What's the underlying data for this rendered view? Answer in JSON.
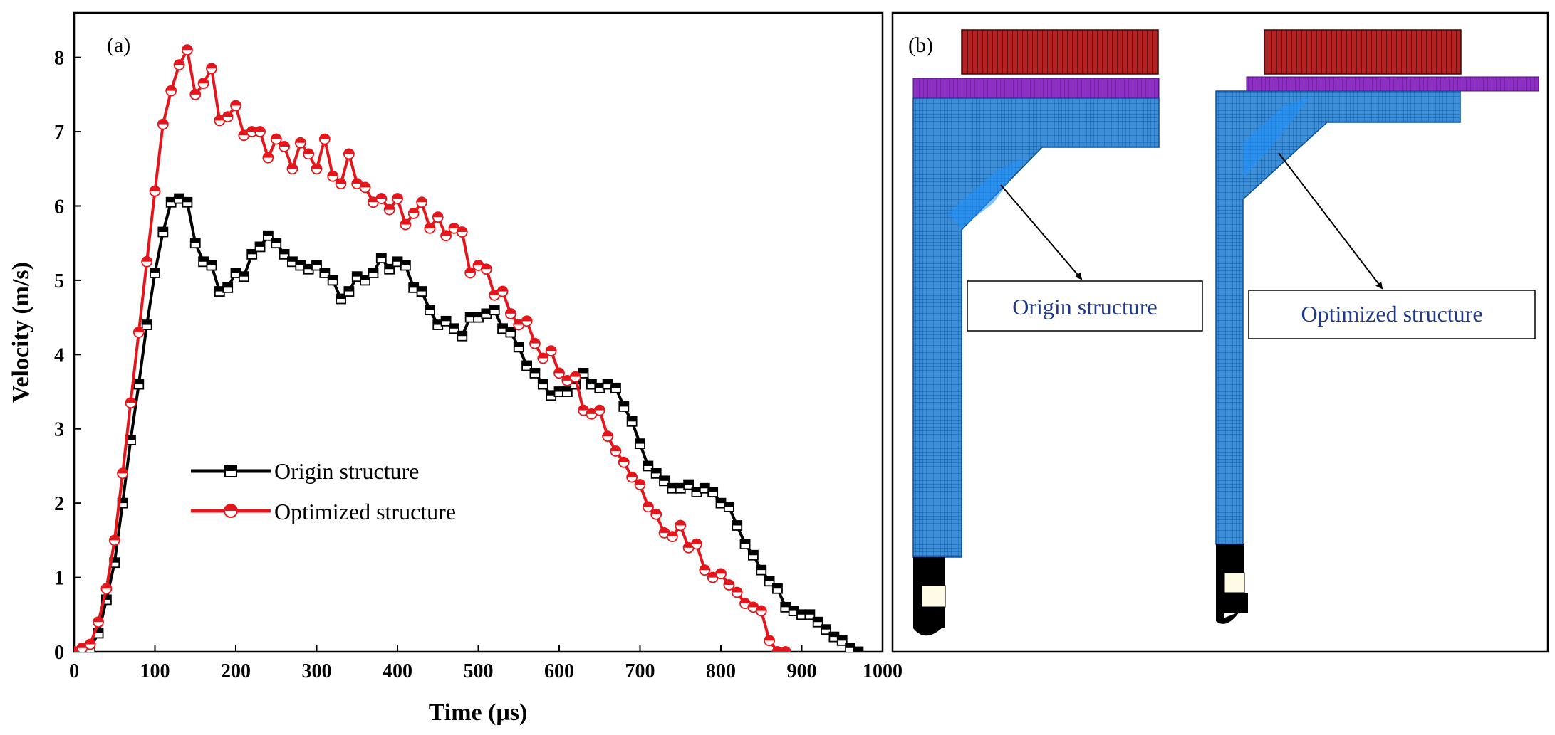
{
  "panel_a_label": "(a)",
  "panel_b_label": "(b)",
  "panel_b": {
    "callout_left": "Origin structure",
    "callout_right": "Optimized structure"
  },
  "colors": {
    "origin": "#000000",
    "optimized": "#e4161b",
    "mesh_fill": "#1e90ff",
    "mesh_line": "#0b4f9c",
    "bar_fill": "#b22222",
    "plate_fill": "#8e2ec6",
    "callout_text": "#1f3a8a"
  },
  "chart_data": {
    "type": "line",
    "title": "",
    "xlabel": "Time (μs)",
    "ylabel": "Velocity (m/s)",
    "xlim": [
      0,
      1000
    ],
    "ylim": [
      0,
      8.6
    ],
    "xticks": [
      0,
      100,
      200,
      300,
      400,
      500,
      600,
      700,
      800,
      900,
      1000
    ],
    "yticks": [
      0,
      1,
      2,
      3,
      4,
      5,
      6,
      7,
      8
    ],
    "legend_position": "lower-left",
    "series": [
      {
        "name": "Origin structure",
        "marker": "half-filled-square",
        "x": [
          0,
          10,
          20,
          30,
          40,
          50,
          60,
          70,
          80,
          90,
          100,
          110,
          120,
          130,
          140,
          150,
          160,
          170,
          180,
          190,
          200,
          210,
          220,
          230,
          240,
          250,
          260,
          270,
          280,
          290,
          300,
          310,
          320,
          330,
          340,
          350,
          360,
          370,
          380,
          390,
          400,
          410,
          420,
          430,
          440,
          450,
          460,
          470,
          480,
          490,
          500,
          510,
          520,
          530,
          540,
          550,
          560,
          570,
          580,
          590,
          600,
          610,
          620,
          630,
          640,
          650,
          660,
          670,
          680,
          690,
          700,
          710,
          720,
          730,
          740,
          750,
          760,
          770,
          780,
          790,
          800,
          810,
          820,
          830,
          840,
          850,
          860,
          870,
          880,
          890,
          900,
          910,
          920,
          930,
          940,
          950,
          960,
          970
        ],
        "y": [
          0,
          0,
          0.05,
          0.25,
          0.7,
          1.2,
          2.0,
          2.85,
          3.6,
          4.4,
          5.1,
          5.65,
          6.05,
          6.1,
          6.05,
          5.5,
          5.25,
          5.2,
          4.85,
          4.9,
          5.1,
          5.05,
          5.35,
          5.45,
          5.6,
          5.5,
          5.35,
          5.25,
          5.2,
          5.15,
          5.2,
          5.1,
          5.0,
          4.75,
          4.85,
          5.05,
          5.0,
          5.1,
          5.3,
          5.15,
          5.25,
          5.2,
          4.9,
          4.85,
          4.6,
          4.4,
          4.45,
          4.35,
          4.25,
          4.5,
          4.5,
          4.55,
          4.6,
          4.35,
          4.3,
          4.1,
          3.85,
          3.75,
          3.6,
          3.45,
          3.5,
          3.5,
          3.6,
          3.75,
          3.6,
          3.55,
          3.6,
          3.55,
          3.3,
          3.1,
          2.8,
          2.5,
          2.4,
          2.3,
          2.2,
          2.2,
          2.25,
          2.15,
          2.2,
          2.15,
          2.0,
          1.95,
          1.7,
          1.45,
          1.3,
          1.1,
          0.95,
          0.85,
          0.6,
          0.55,
          0.5,
          0.5,
          0.4,
          0.3,
          0.2,
          0.15,
          0.05,
          0
        ]
      },
      {
        "name": "Optimized structure",
        "marker": "half-filled-circle",
        "x": [
          0,
          10,
          20,
          30,
          40,
          50,
          60,
          70,
          80,
          90,
          100,
          110,
          120,
          130,
          140,
          150,
          160,
          170,
          180,
          190,
          200,
          210,
          220,
          230,
          240,
          250,
          260,
          270,
          280,
          290,
          300,
          310,
          320,
          330,
          340,
          350,
          360,
          370,
          380,
          390,
          400,
          410,
          420,
          430,
          440,
          450,
          460,
          470,
          480,
          490,
          500,
          510,
          520,
          530,
          540,
          550,
          560,
          570,
          580,
          590,
          600,
          610,
          620,
          630,
          640,
          650,
          660,
          670,
          680,
          690,
          700,
          710,
          720,
          730,
          740,
          750,
          760,
          770,
          780,
          790,
          800,
          810,
          820,
          830,
          840,
          850,
          860,
          870,
          880
        ],
        "y": [
          0,
          0.05,
          0.1,
          0.4,
          0.85,
          1.5,
          2.4,
          3.35,
          4.3,
          5.25,
          6.2,
          7.1,
          7.55,
          7.9,
          8.1,
          7.5,
          7.65,
          7.85,
          7.15,
          7.2,
          7.35,
          6.95,
          7.0,
          7.0,
          6.65,
          6.9,
          6.8,
          6.5,
          6.85,
          6.7,
          6.5,
          6.9,
          6.4,
          6.3,
          6.7,
          6.3,
          6.25,
          6.05,
          6.1,
          5.95,
          6.1,
          5.75,
          5.9,
          6.05,
          5.7,
          5.85,
          5.6,
          5.7,
          5.65,
          5.1,
          5.2,
          5.15,
          4.8,
          4.85,
          4.55,
          4.4,
          4.45,
          4.15,
          3.95,
          4.05,
          3.75,
          3.65,
          3.7,
          3.25,
          3.2,
          3.25,
          2.9,
          2.7,
          2.55,
          2.35,
          2.25,
          1.95,
          1.85,
          1.6,
          1.55,
          1.7,
          1.4,
          1.45,
          1.1,
          1.0,
          1.05,
          0.9,
          0.8,
          0.65,
          0.6,
          0.55,
          0.15,
          0,
          0
        ]
      }
    ]
  }
}
